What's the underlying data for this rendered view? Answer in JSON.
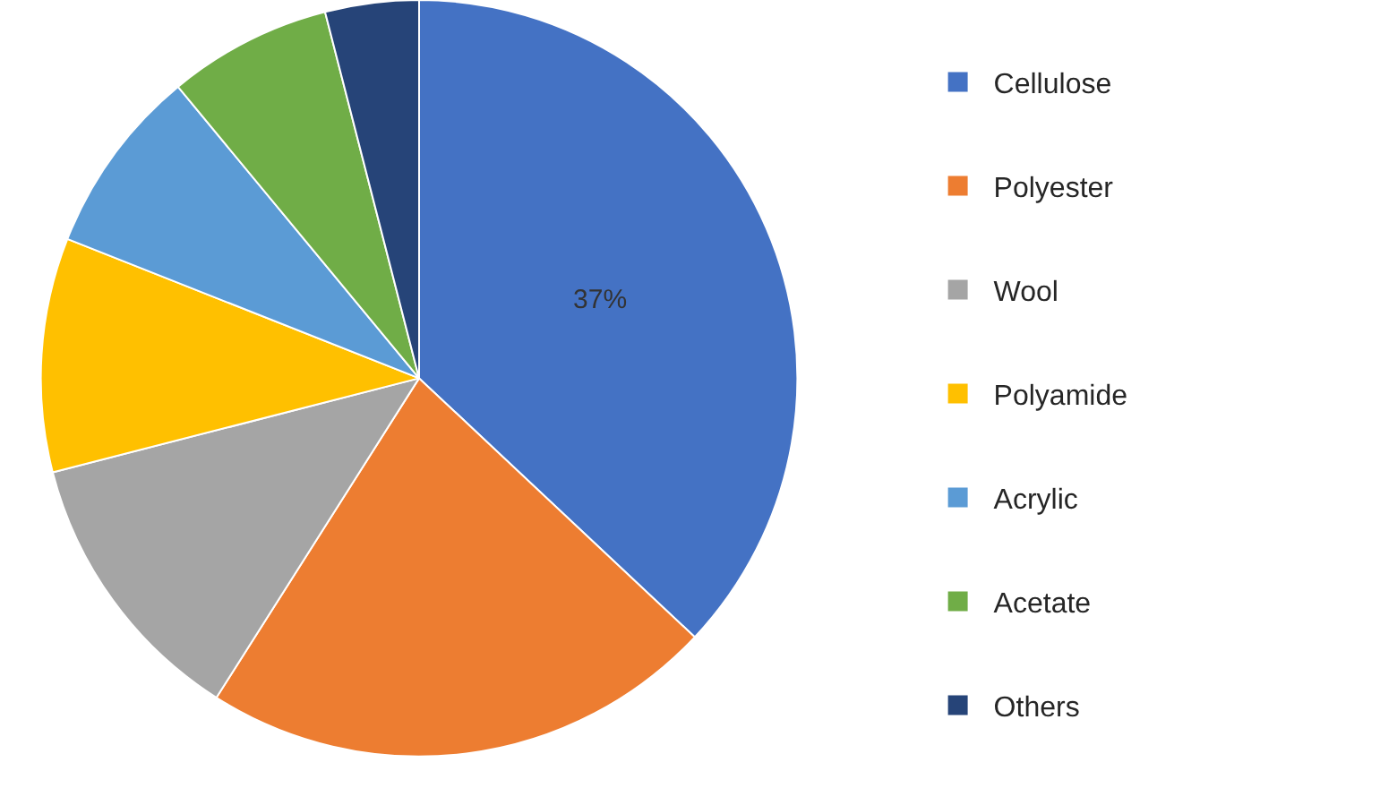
{
  "chart_data": {
    "type": "pie",
    "categories": [
      "Cellulose",
      "Polyester",
      "Wool",
      "Polyamide",
      "Acrylic",
      "Acetate",
      "Others"
    ],
    "values": [
      37,
      22,
      12,
      10,
      8,
      7,
      4
    ],
    "colors": [
      "#4472c4",
      "#ed7d31",
      "#a5a5a5",
      "#ffc000",
      "#5b9bd5",
      "#70ad47",
      "#264478"
    ],
    "value_labels": [
      "37%",
      null,
      null,
      null,
      null,
      null,
      null
    ],
    "legend": "right"
  }
}
